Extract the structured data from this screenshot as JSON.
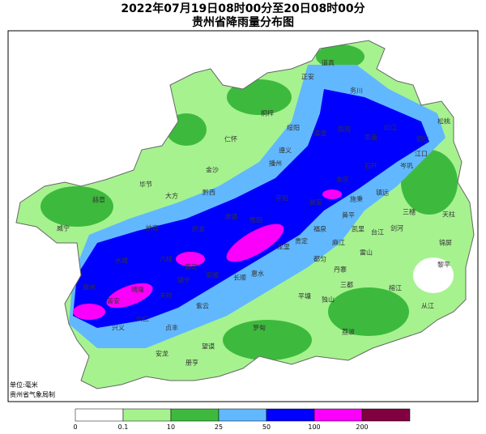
{
  "title": "2022年07月19日08时00分至20日08时00分",
  "subtitle": "贵州省降雨量分布图",
  "unit_note": "单位:毫米",
  "source_note": "贵州省气象局制",
  "cities": [
    "道真",
    "正安",
    "务川",
    "桐梓",
    "绥阳",
    "湄潭",
    "凤冈",
    "思南",
    "印江",
    "松桃",
    "仁怀",
    "遵义",
    "播州",
    "金沙",
    "毕节",
    "大方",
    "赫章",
    "黔西",
    "威宁",
    "纳雍",
    "织金",
    "开阳",
    "瓮安",
    "余庆",
    "石阡",
    "江口",
    "铜仁",
    "岑巩",
    "镇远",
    "施秉",
    "黄平",
    "三穗",
    "天柱",
    "清镇",
    "贵阳",
    "龙里",
    "贵定",
    "福泉",
    "凯里",
    "台江",
    "剑河",
    "锦屏",
    "黎平",
    "雷山",
    "丹寨",
    "麻江",
    "都匀",
    "三都",
    "榕江",
    "从江",
    "独山",
    "平塘",
    "惠水",
    "长顺",
    "水城",
    "六枝",
    "普定",
    "安顺",
    "镇宁",
    "关岭",
    "紫云",
    "罗甸",
    "望谟",
    "册亨",
    "安龙",
    "贞丰",
    "兴仁",
    "兴义",
    "普安",
    "晴隆",
    "盘州",
    "荔波"
  ],
  "legend": {
    "thresholds": [
      0,
      0.1,
      10,
      25,
      50,
      100,
      200
    ],
    "colors": [
      "#ffffff",
      "#a6f28f",
      "#3dba3d",
      "#61b8ff",
      "#0000fe",
      "#fa00fa",
      "#800040"
    ]
  }
}
